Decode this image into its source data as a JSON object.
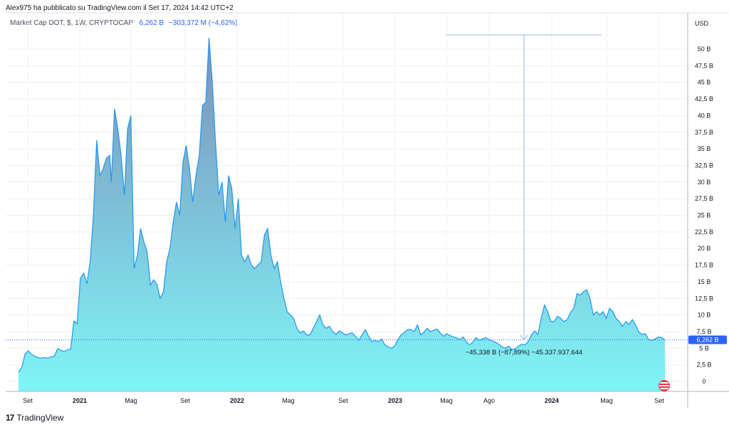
{
  "header": {
    "title": "Alex975 ha pubblicato su TradingView.com il Set 17, 2024 14:42 UTC+2"
  },
  "legend": {
    "symbol": "Market Cap DOT, $, 1W, CRYPTOCAP",
    "value": "6,262 B",
    "change": "−303,372 M (−4,62%)"
  },
  "currency": "USD",
  "last_price_label": "6,262 B",
  "measure_label": "−45,338 B (−87,89%) −45.337.937.644",
  "footer": {
    "brand": "TradingView"
  },
  "colors": {
    "line": "#2196f3",
    "fill_top": "#7e8fb8",
    "fill_bottom": "#7ff5f7",
    "grid": "#eef0f3",
    "measure": "#9bb8ee",
    "price_badge": "#2962ff"
  },
  "chart_data": {
    "type": "area",
    "title": "Market Cap DOT, $, 1W, CRYPTOCAP",
    "xlabel": "",
    "ylabel": "",
    "ylim": [
      -1.5,
      54
    ],
    "grid": true,
    "y_ticks": [
      "0",
      "2,5 B",
      "5 B",
      "7,5 B",
      "10 B",
      "12,5 B",
      "15 B",
      "17,5 B",
      "20 B",
      "22,5 B",
      "25 B",
      "27,5 B",
      "30 B",
      "32,5 B",
      "35 B",
      "37,5 B",
      "40 B",
      "42,5 B",
      "45 B",
      "47,5 B",
      "50 B"
    ],
    "x_ticks": [
      "Set",
      "2021",
      "Mag",
      "Set",
      "2022",
      "Mag",
      "Set",
      "2023",
      "Mag",
      "Ago",
      "2024",
      "Mag",
      "Set"
    ],
    "series": [
      {
        "values": [
          [
            2020.64,
            1.4
          ],
          [
            2020.66,
            2.1
          ],
          [
            2020.68,
            4.1
          ],
          [
            2020.7,
            4.6
          ],
          [
            2020.72,
            4.1
          ],
          [
            2020.74,
            3.8
          ],
          [
            2020.76,
            3.6
          ],
          [
            2020.78,
            3.5
          ],
          [
            2020.8,
            3.6
          ],
          [
            2020.82,
            3.5
          ],
          [
            2020.84,
            3.7
          ],
          [
            2020.86,
            3.8
          ],
          [
            2020.88,
            4.9
          ],
          [
            2020.9,
            4.7
          ],
          [
            2020.92,
            4.5
          ],
          [
            2020.94,
            4.8
          ],
          [
            2020.96,
            4.8
          ],
          [
            2020.98,
            9.1
          ],
          [
            2021.0,
            8.7
          ],
          [
            2021.02,
            15.5
          ],
          [
            2021.04,
            16.3
          ],
          [
            2021.06,
            14.7
          ],
          [
            2021.08,
            18.0
          ],
          [
            2021.1,
            25.0
          ],
          [
            2021.12,
            36.3
          ],
          [
            2021.14,
            31.0
          ],
          [
            2021.16,
            32.0
          ],
          [
            2021.18,
            33.6
          ],
          [
            2021.2,
            34.0
          ],
          [
            2021.21,
            30.0
          ],
          [
            2021.23,
            41.0
          ],
          [
            2021.25,
            38.0
          ],
          [
            2021.27,
            34.0
          ],
          [
            2021.29,
            28.0
          ],
          [
            2021.31,
            38.0
          ],
          [
            2021.33,
            40.0
          ],
          [
            2021.35,
            17.0
          ],
          [
            2021.37,
            19.0
          ],
          [
            2021.39,
            23.0
          ],
          [
            2021.41,
            21.0
          ],
          [
            2021.43,
            19.5
          ],
          [
            2021.45,
            14.5
          ],
          [
            2021.47,
            15.3
          ],
          [
            2021.49,
            14.6
          ],
          [
            2021.51,
            12.5
          ],
          [
            2021.53,
            13.5
          ],
          [
            2021.55,
            18.0
          ],
          [
            2021.57,
            20.0
          ],
          [
            2021.59,
            24.0
          ],
          [
            2021.61,
            27.0
          ],
          [
            2021.63,
            25.0
          ],
          [
            2021.65,
            33.0
          ],
          [
            2021.67,
            35.5
          ],
          [
            2021.69,
            32.0
          ],
          [
            2021.71,
            27.0
          ],
          [
            2021.73,
            31.0
          ],
          [
            2021.75,
            34.0
          ],
          [
            2021.77,
            41.5
          ],
          [
            2021.79,
            42.0
          ],
          [
            2021.81,
            51.7
          ],
          [
            2021.83,
            45.0
          ],
          [
            2021.85,
            36.0
          ],
          [
            2021.87,
            28.0
          ],
          [
            2021.89,
            30.0
          ],
          [
            2021.91,
            24.0
          ],
          [
            2021.93,
            31.0
          ],
          [
            2021.95,
            29.0
          ],
          [
            2021.97,
            23.0
          ],
          [
            2021.99,
            27.5
          ],
          [
            2022.01,
            19.0
          ],
          [
            2022.03,
            18.0
          ],
          [
            2022.05,
            19.0
          ],
          [
            2022.07,
            17.5
          ],
          [
            2022.09,
            17.0
          ],
          [
            2022.11,
            17.5
          ],
          [
            2022.13,
            18.0
          ],
          [
            2022.15,
            22.0
          ],
          [
            2022.17,
            23.0
          ],
          [
            2022.19,
            19.0
          ],
          [
            2022.21,
            17.0
          ],
          [
            2022.23,
            18.0
          ],
          [
            2022.25,
            15.0
          ],
          [
            2022.27,
            12.5
          ],
          [
            2022.29,
            10.5
          ],
          [
            2022.31,
            10.0
          ],
          [
            2022.33,
            9.5
          ],
          [
            2022.35,
            8.0
          ],
          [
            2022.37,
            7.3
          ],
          [
            2022.39,
            7.6
          ],
          [
            2022.41,
            7.0
          ],
          [
            2022.43,
            7.0
          ],
          [
            2022.45,
            8.0
          ],
          [
            2022.47,
            9.0
          ],
          [
            2022.49,
            10.0
          ],
          [
            2022.51,
            8.5
          ],
          [
            2022.53,
            8.0
          ],
          [
            2022.55,
            8.3
          ],
          [
            2022.57,
            7.5
          ],
          [
            2022.59,
            7.1
          ],
          [
            2022.61,
            7.6
          ],
          [
            2022.63,
            7.3
          ],
          [
            2022.65,
            7.0
          ],
          [
            2022.67,
            7.2
          ],
          [
            2022.69,
            7.3
          ],
          [
            2022.71,
            6.8
          ],
          [
            2022.73,
            6.2
          ],
          [
            2022.75,
            7.0
          ],
          [
            2022.77,
            7.8
          ],
          [
            2022.79,
            6.8
          ],
          [
            2022.81,
            6.0
          ],
          [
            2022.83,
            6.2
          ],
          [
            2022.85,
            6.0
          ],
          [
            2022.87,
            6.4
          ],
          [
            2022.89,
            5.5
          ],
          [
            2022.91,
            5.2
          ],
          [
            2022.93,
            5.0
          ],
          [
            2022.95,
            5.3
          ],
          [
            2022.97,
            6.3
          ],
          [
            2022.99,
            7.0
          ],
          [
            2023.01,
            7.4
          ],
          [
            2023.03,
            7.8
          ],
          [
            2023.05,
            7.8
          ],
          [
            2023.07,
            7.5
          ],
          [
            2023.09,
            8.5
          ],
          [
            2023.11,
            7.0
          ],
          [
            2023.13,
            7.4
          ],
          [
            2023.15,
            8.0
          ],
          [
            2023.17,
            7.5
          ],
          [
            2023.19,
            7.7
          ],
          [
            2023.21,
            7.9
          ],
          [
            2023.23,
            7.3
          ],
          [
            2023.25,
            6.8
          ],
          [
            2023.27,
            7.2
          ],
          [
            2023.29,
            6.9
          ],
          [
            2023.31,
            6.7
          ],
          [
            2023.33,
            6.6
          ],
          [
            2023.35,
            6.3
          ],
          [
            2023.37,
            6.7
          ],
          [
            2023.39,
            6.0
          ],
          [
            2023.41,
            5.5
          ],
          [
            2023.43,
            5.9
          ],
          [
            2023.45,
            6.6
          ],
          [
            2023.47,
            6.2
          ],
          [
            2023.49,
            6.4
          ],
          [
            2023.51,
            6.6
          ],
          [
            2023.53,
            6.3
          ],
          [
            2023.55,
            6.1
          ],
          [
            2023.57,
            5.9
          ],
          [
            2023.59,
            5.6
          ],
          [
            2023.61,
            5.2
          ],
          [
            2023.63,
            5.0
          ],
          [
            2023.65,
            5.3
          ],
          [
            2023.67,
            4.8
          ],
          [
            2023.69,
            4.9
          ],
          [
            2023.71,
            5.3
          ],
          [
            2023.73,
            5.6
          ],
          [
            2023.75,
            5.5
          ],
          [
            2023.77,
            6.0
          ],
          [
            2023.79,
            7.0
          ],
          [
            2023.81,
            7.6
          ],
          [
            2023.83,
            7.1
          ],
          [
            2023.85,
            9.5
          ],
          [
            2023.87,
            11.5
          ],
          [
            2023.89,
            10.5
          ],
          [
            2023.91,
            9.0
          ],
          [
            2023.93,
            9.0
          ],
          [
            2023.95,
            9.8
          ],
          [
            2023.97,
            9.5
          ],
          [
            2023.99,
            9.0
          ],
          [
            2024.01,
            9.3
          ],
          [
            2024.03,
            10.4
          ],
          [
            2024.05,
            11.0
          ],
          [
            2024.07,
            13.2
          ],
          [
            2024.09,
            13.0
          ],
          [
            2024.11,
            13.5
          ],
          [
            2024.13,
            13.8
          ],
          [
            2024.15,
            12.5
          ],
          [
            2024.17,
            10.0
          ],
          [
            2024.19,
            10.5
          ],
          [
            2024.21,
            10.0
          ],
          [
            2024.23,
            10.5
          ],
          [
            2024.25,
            9.5
          ],
          [
            2024.27,
            11.0
          ],
          [
            2024.29,
            10.5
          ],
          [
            2024.31,
            9.5
          ],
          [
            2024.33,
            9.0
          ],
          [
            2024.35,
            8.3
          ],
          [
            2024.37,
            9.0
          ],
          [
            2024.39,
            8.6
          ],
          [
            2024.41,
            9.3
          ],
          [
            2024.43,
            8.5
          ],
          [
            2024.45,
            7.4
          ],
          [
            2024.47,
            7.1
          ],
          [
            2024.49,
            7.2
          ],
          [
            2024.51,
            6.3
          ],
          [
            2024.53,
            6.2
          ],
          [
            2024.55,
            6.4
          ],
          [
            2024.57,
            6.7
          ],
          [
            2024.59,
            6.6
          ],
          [
            2024.61,
            6.26
          ]
        ]
      }
    ]
  }
}
